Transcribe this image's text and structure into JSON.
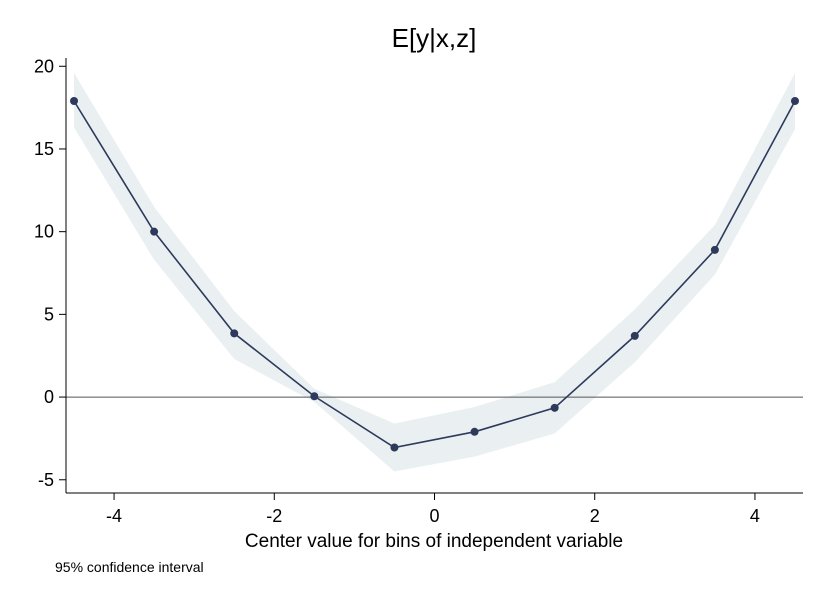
{
  "chart_data": {
    "type": "line",
    "title": "E[y|x,z]",
    "xlabel": "Center value for bins of independent variable",
    "ylabel": "",
    "note": "95% confidence interval",
    "xlim": [
      -4.6,
      4.6
    ],
    "ylim": [
      -5.8,
      20.5
    ],
    "xticks": [
      -4,
      -2,
      0,
      2,
      4
    ],
    "xtick_labels": [
      "-4",
      "-2",
      "0",
      "2",
      "4"
    ],
    "yticks": [
      -5,
      0,
      5,
      10,
      15,
      20
    ],
    "ytick_labels": [
      "-5",
      "0",
      "5",
      "10",
      "15",
      "20"
    ],
    "zero_line": 0,
    "grid": false,
    "series": [
      {
        "x": [
          -4.5,
          -3.5,
          -2.5,
          -1.5,
          -0.5,
          0.5,
          1.5,
          2.5,
          3.5,
          4.5
        ],
        "y": [
          17.9,
          10.0,
          3.85,
          0.05,
          -3.05,
          -2.1,
          -0.65,
          3.7,
          8.9,
          17.9
        ],
        "ci_lower": [
          16.3,
          8.3,
          2.3,
          -0.3,
          -4.5,
          -3.6,
          -2.2,
          2.1,
          7.4,
          16.2
        ],
        "ci_upper": [
          19.6,
          11.5,
          5.2,
          0.5,
          -1.6,
          -0.6,
          0.9,
          5.3,
          10.4,
          19.6
        ]
      }
    ],
    "colors": {
      "line": "#2e3a5c",
      "marker": "#2e3a5c",
      "ci_band": "#eaf0f2",
      "zero_line": "#555555"
    }
  }
}
